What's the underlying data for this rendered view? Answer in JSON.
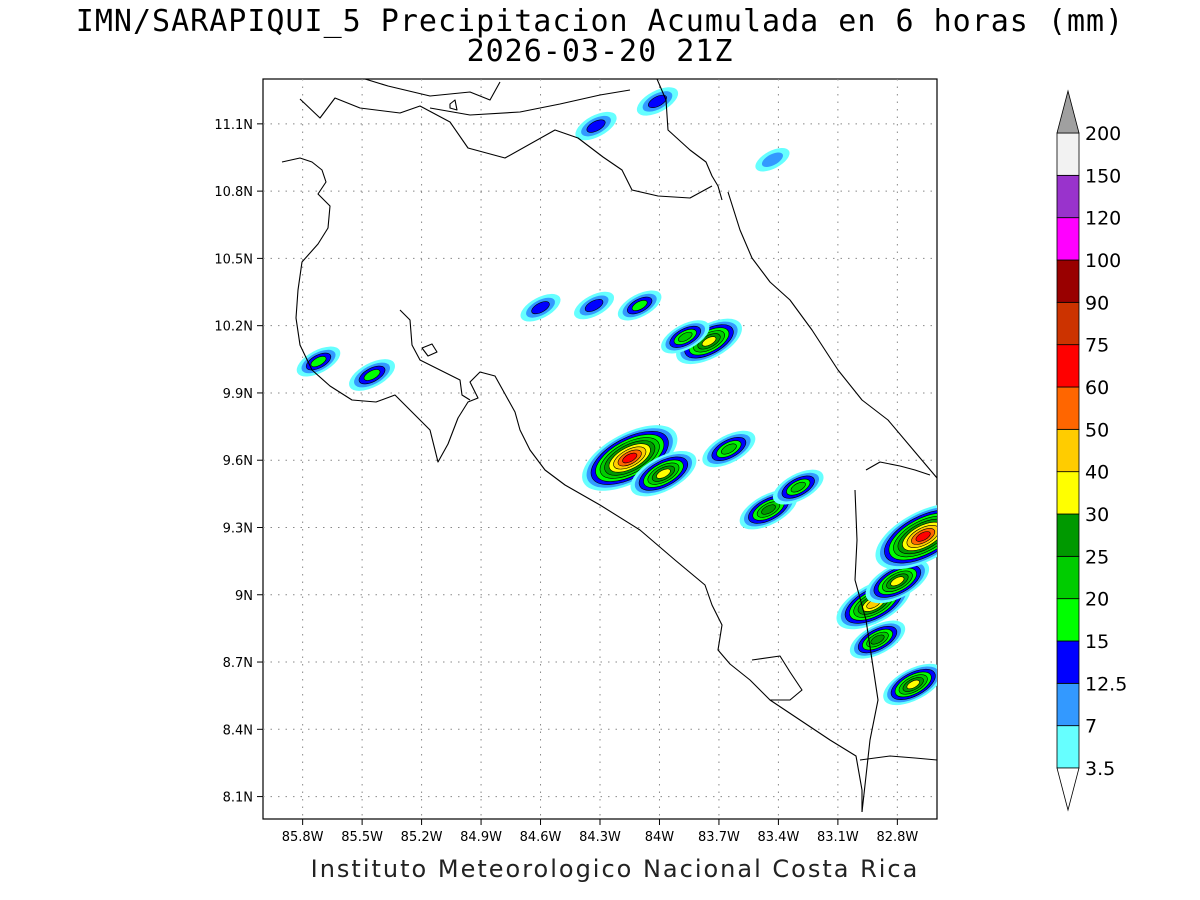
{
  "title": {
    "line1": "IMN/SARAPIQUI_5 Precipitacion Acumulada en 6 horas (mm)",
    "line2": "2026-03-20 21Z"
  },
  "footer": "Instituto Meteorologico Nacional Costa Rica",
  "map": {
    "lon_range": [
      -86.0,
      -82.6
    ],
    "lat_range": [
      8.0,
      11.3
    ],
    "lon_ticks": [
      {
        "value": -85.8,
        "label": "85.8W"
      },
      {
        "value": -85.5,
        "label": "85.5W"
      },
      {
        "value": -85.2,
        "label": "85.2W"
      },
      {
        "value": -84.9,
        "label": "84.9W"
      },
      {
        "value": -84.6,
        "label": "84.6W"
      },
      {
        "value": -84.3,
        "label": "84.3W"
      },
      {
        "value": -84.0,
        "label": "84W"
      },
      {
        "value": -83.7,
        "label": "83.7W"
      },
      {
        "value": -83.4,
        "label": "83.4W"
      },
      {
        "value": -83.1,
        "label": "83.1W"
      },
      {
        "value": -82.8,
        "label": "82.8W"
      }
    ],
    "lat_ticks": [
      {
        "value": 11.1,
        "label": "11.1N"
      },
      {
        "value": 10.8,
        "label": "10.8N"
      },
      {
        "value": 10.5,
        "label": "10.5N"
      },
      {
        "value": 10.2,
        "label": "10.2N"
      },
      {
        "value": 9.9,
        "label": "9.9N"
      },
      {
        "value": 9.6,
        "label": "9.6N"
      },
      {
        "value": 9.3,
        "label": "9.3N"
      },
      {
        "value": 9.0,
        "label": "9N"
      },
      {
        "value": 8.7,
        "label": "8.7N"
      },
      {
        "value": 8.4,
        "label": "8.4N"
      },
      {
        "value": 8.1,
        "label": "8.1N"
      }
    ],
    "grid": true
  },
  "colorbar": {
    "levels": [
      {
        "label": "3.5",
        "color": "#66ffff"
      },
      {
        "label": "7",
        "color": "#3399ff"
      },
      {
        "label": "12.5",
        "color": "#0000ff"
      },
      {
        "label": "15",
        "color": "#00ff00"
      },
      {
        "label": "20",
        "color": "#00cc00"
      },
      {
        "label": "25",
        "color": "#009900"
      },
      {
        "label": "30",
        "color": "#ffff00"
      },
      {
        "label": "40",
        "color": "#ffcc00"
      },
      {
        "label": "50",
        "color": "#ff6600"
      },
      {
        "label": "60",
        "color": "#ff0000"
      },
      {
        "label": "75",
        "color": "#cc3300"
      },
      {
        "label": "90",
        "color": "#990000"
      },
      {
        "label": "100",
        "color": "#ff00ff"
      },
      {
        "label": "120",
        "color": "#9933cc"
      },
      {
        "label": "150",
        "color": "#f2f2f2"
      },
      {
        "label": "200",
        "color": "#a0a0a0"
      }
    ],
    "top_label": "200",
    "bottom_label": "3.5"
  },
  "rain_cells": [
    {
      "lon": -84.32,
      "lat": 11.09,
      "max_mm": 14
    },
    {
      "lon": -84.01,
      "lat": 11.2,
      "max_mm": 14
    },
    {
      "lon": -83.43,
      "lat": 10.94,
      "max_mm": 8
    },
    {
      "lon": -84.33,
      "lat": 10.29,
      "max_mm": 13
    },
    {
      "lon": -84.1,
      "lat": 10.29,
      "max_mm": 16
    },
    {
      "lon": -84.6,
      "lat": 10.28,
      "max_mm": 13
    },
    {
      "lon": -83.75,
      "lat": 10.13,
      "max_mm": 35
    },
    {
      "lon": -83.87,
      "lat": 10.15,
      "max_mm": 20
    },
    {
      "lon": -85.72,
      "lat": 10.04,
      "max_mm": 16
    },
    {
      "lon": -85.45,
      "lat": 9.98,
      "max_mm": 18
    },
    {
      "lon": -84.15,
      "lat": 9.61,
      "max_mm": 62
    },
    {
      "lon": -83.98,
      "lat": 9.54,
      "max_mm": 35
    },
    {
      "lon": -83.45,
      "lat": 9.38,
      "max_mm": 28
    },
    {
      "lon": -82.92,
      "lat": 8.96,
      "max_mm": 42
    },
    {
      "lon": -82.8,
      "lat": 9.06,
      "max_mm": 33
    },
    {
      "lon": -82.67,
      "lat": 9.26,
      "max_mm": 65
    },
    {
      "lon": -82.72,
      "lat": 8.6,
      "max_mm": 30
    },
    {
      "lon": -82.9,
      "lat": 8.8,
      "max_mm": 26
    },
    {
      "lon": -83.3,
      "lat": 9.48,
      "max_mm": 22
    },
    {
      "lon": -83.65,
      "lat": 9.65,
      "max_mm": 24
    }
  ]
}
